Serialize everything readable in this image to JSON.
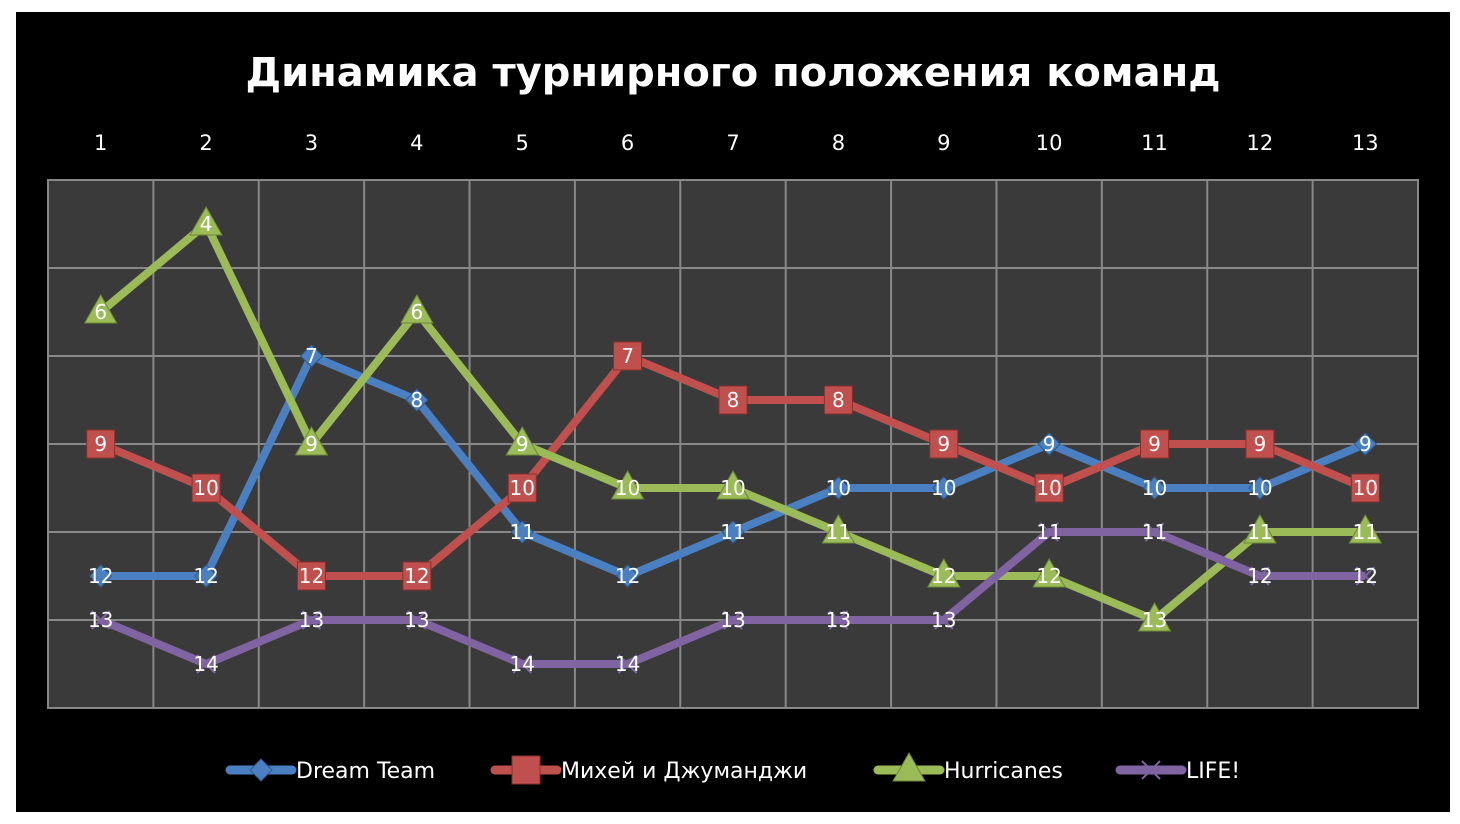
{
  "chart_data": {
    "type": "line",
    "title": "Динамика турнирного положения команд",
    "xlabel": "",
    "ylabel": "",
    "categories": [
      "1",
      "2",
      "3",
      "4",
      "5",
      "6",
      "7",
      "8",
      "9",
      "10",
      "11",
      "12",
      "13"
    ],
    "x_axis_position": "top",
    "ylim": [
      3,
      15
    ],
    "y_reversed": true,
    "y_grid_step": 2,
    "grid": true,
    "legend": "bottom",
    "series": [
      {
        "name": "Dream Team",
        "color": "#4a7fc1",
        "marker": "diamond",
        "values": [
          12,
          12,
          7,
          8,
          11,
          12,
          11,
          10,
          10,
          9,
          10,
          10,
          9
        ]
      },
      {
        "name": "Михей и Джуманджи",
        "color": "#c0504d",
        "marker": "square",
        "values": [
          9,
          10,
          12,
          12,
          10,
          7,
          8,
          8,
          9,
          10,
          9,
          9,
          10
        ]
      },
      {
        "name": "Hurricanes",
        "color": "#9bbb59",
        "marker": "triangle",
        "values": [
          6,
          4,
          9,
          6,
          9,
          10,
          10,
          11,
          12,
          12,
          13,
          11,
          11
        ]
      },
      {
        "name": "LIFE!",
        "color": "#8064a2",
        "marker": "x",
        "values": [
          13,
          14,
          13,
          13,
          14,
          14,
          13,
          13,
          13,
          11,
          11,
          12,
          12
        ]
      }
    ]
  }
}
